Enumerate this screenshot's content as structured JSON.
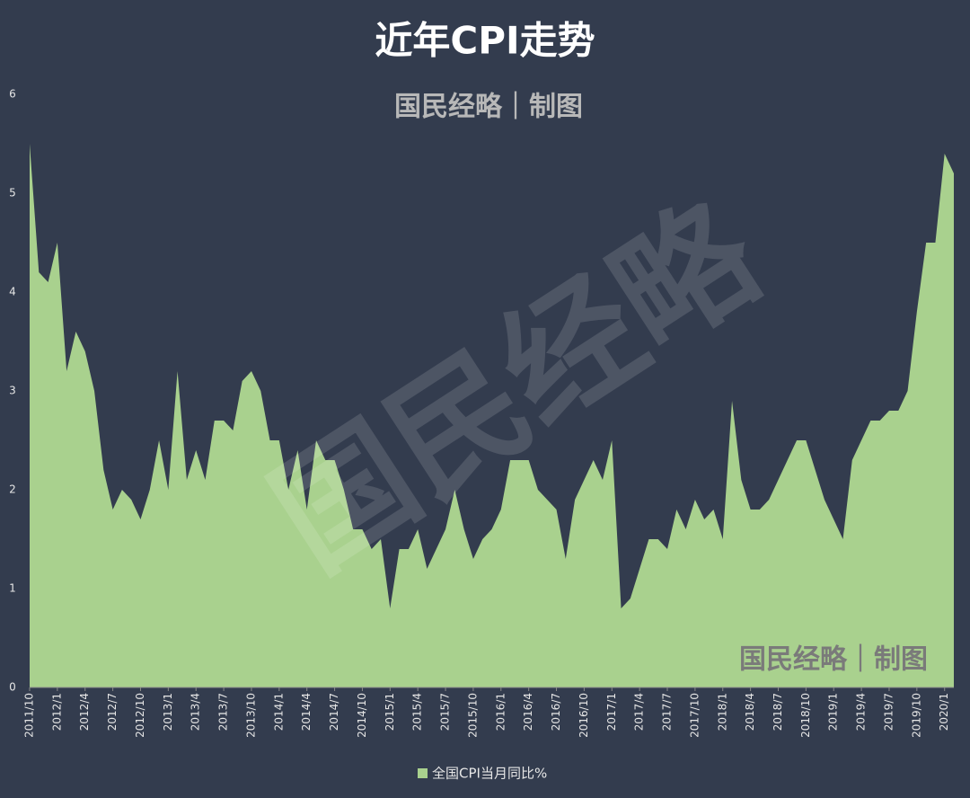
{
  "chart_data": {
    "type": "area",
    "title": "近年CPI走势",
    "watermarks": [
      "国民经略｜制图",
      "国民经略",
      "国民经略｜制图"
    ],
    "categories": [
      "2011/10",
      null,
      null,
      "2012/1",
      null,
      null,
      "2012/4",
      null,
      null,
      "2012/7",
      null,
      null,
      "2012/10",
      null,
      null,
      "2013/1",
      null,
      null,
      "2013/4",
      null,
      null,
      "2013/7",
      null,
      null,
      "2013/10",
      null,
      null,
      "2014/1",
      null,
      null,
      "2014/4",
      null,
      null,
      "2014/7",
      null,
      null,
      "2014/10",
      null,
      null,
      "2015/1",
      null,
      null,
      "2015/4",
      null,
      null,
      "2015/7",
      null,
      null,
      "2015/10",
      null,
      null,
      "2016/1",
      null,
      null,
      "2016/4",
      null,
      null,
      "2016/7",
      null,
      null,
      "2016/10",
      null,
      null,
      "2017/1",
      null,
      null,
      "2017/4",
      null,
      null,
      "2017/7",
      null,
      null,
      "2017/10",
      null,
      null,
      "2018/1",
      null,
      null,
      "2018/4",
      null,
      null,
      "2018/7",
      null,
      null,
      "2018/10",
      null,
      null,
      "2019/1",
      null,
      null,
      "2019/4",
      null,
      null,
      "2019/7",
      null,
      null,
      "2019/10",
      null,
      null,
      "2020/1",
      null
    ],
    "series": [
      {
        "name": "全国CPI当月同比%",
        "color": "#a9d18e",
        "values": [
          5.5,
          4.2,
          4.1,
          4.5,
          3.2,
          3.6,
          3.4,
          3.0,
          2.2,
          1.8,
          2.0,
          1.9,
          1.7,
          2.0,
          2.5,
          2.0,
          3.2,
          2.1,
          2.4,
          2.1,
          2.7,
          2.7,
          2.6,
          3.1,
          3.2,
          3.0,
          2.5,
          2.5,
          2.0,
          2.4,
          1.8,
          2.5,
          2.3,
          2.3,
          2.0,
          1.6,
          1.6,
          1.4,
          1.5,
          0.8,
          1.4,
          1.4,
          1.6,
          1.2,
          1.4,
          1.6,
          2.0,
          1.6,
          1.3,
          1.5,
          1.6,
          1.8,
          2.3,
          2.3,
          2.3,
          2.0,
          1.9,
          1.8,
          1.3,
          1.9,
          2.1,
          2.3,
          2.1,
          2.5,
          0.8,
          0.9,
          1.2,
          1.5,
          1.5,
          1.4,
          1.8,
          1.6,
          1.9,
          1.7,
          1.8,
          1.5,
          2.9,
          2.1,
          1.8,
          1.8,
          1.9,
          2.1,
          2.3,
          2.5,
          2.5,
          2.2,
          1.9,
          1.7,
          1.5,
          2.3,
          2.5,
          2.7,
          2.7,
          2.8,
          2.8,
          3.0,
          3.8,
          4.5,
          4.5,
          5.4,
          5.2
        ]
      }
    ],
    "ylim": [
      0,
      6
    ],
    "yticks": [
      0,
      1,
      2,
      3,
      4,
      5,
      6
    ],
    "grid": false,
    "legend": "bottom"
  }
}
